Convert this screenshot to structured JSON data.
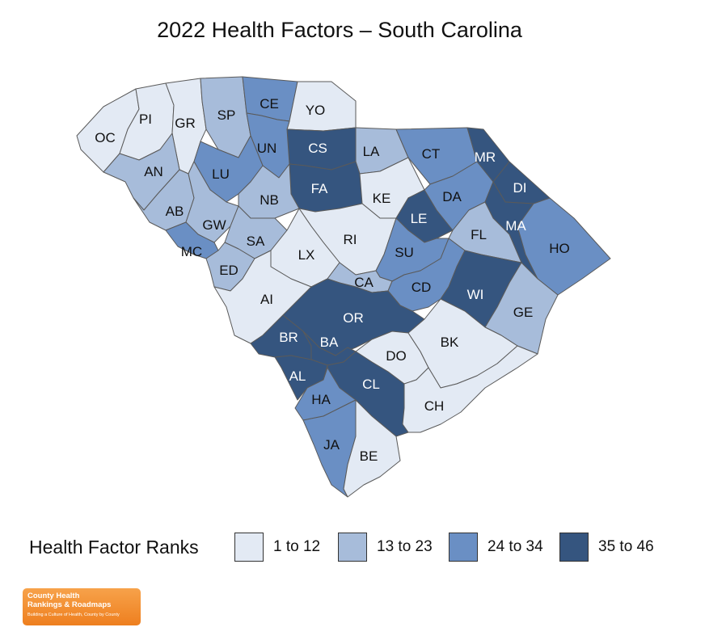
{
  "title": "2022 Health Factors – South Carolina",
  "legend": {
    "title": "Health Factor Ranks",
    "items": [
      {
        "label": "1 to 12",
        "color": "#e3eaf4"
      },
      {
        "label": "13 to 23",
        "color": "#a7bcda"
      },
      {
        "label": "24 to 34",
        "color": "#6a8fc4"
      },
      {
        "label": "35 to 46",
        "color": "#35557f"
      }
    ]
  },
  "counties": [
    {
      "code": "OC",
      "bin": 0
    },
    {
      "code": "PI",
      "bin": 0
    },
    {
      "code": "GR",
      "bin": 0
    },
    {
      "code": "SP",
      "bin": 1
    },
    {
      "code": "CE",
      "bin": 2
    },
    {
      "code": "YO",
      "bin": 0
    },
    {
      "code": "CS",
      "bin": 3
    },
    {
      "code": "UN",
      "bin": 2
    },
    {
      "code": "LA",
      "bin": 1
    },
    {
      "code": "CT",
      "bin": 2
    },
    {
      "code": "MR",
      "bin": 3
    },
    {
      "code": "DI",
      "bin": 3
    },
    {
      "code": "AN",
      "bin": 1
    },
    {
      "code": "LU",
      "bin": 2
    },
    {
      "code": "FA",
      "bin": 3
    },
    {
      "code": "KE",
      "bin": 0
    },
    {
      "code": "LE",
      "bin": 3
    },
    {
      "code": "DA",
      "bin": 2
    },
    {
      "code": "MA",
      "bin": 3
    },
    {
      "code": "HO",
      "bin": 2
    },
    {
      "code": "NB",
      "bin": 1
    },
    {
      "code": "AB",
      "bin": 1
    },
    {
      "code": "GW",
      "bin": 1
    },
    {
      "code": "SA",
      "bin": 1
    },
    {
      "code": "RI",
      "bin": 0
    },
    {
      "code": "FL",
      "bin": 1
    },
    {
      "code": "MC",
      "bin": 2
    },
    {
      "code": "LX",
      "bin": 0
    },
    {
      "code": "SU",
      "bin": 2
    },
    {
      "code": "ED",
      "bin": 1
    },
    {
      "code": "CA",
      "bin": 1
    },
    {
      "code": "CD",
      "bin": 2
    },
    {
      "code": "WI",
      "bin": 3
    },
    {
      "code": "AI",
      "bin": 0
    },
    {
      "code": "OR",
      "bin": 3
    },
    {
      "code": "GE",
      "bin": 1
    },
    {
      "code": "BR",
      "bin": 3
    },
    {
      "code": "BA",
      "bin": 3
    },
    {
      "code": "DO",
      "bin": 0
    },
    {
      "code": "BK",
      "bin": 0
    },
    {
      "code": "AL",
      "bin": 3
    },
    {
      "code": "CL",
      "bin": 3
    },
    {
      "code": "HA",
      "bin": 2
    },
    {
      "code": "CH",
      "bin": 0
    },
    {
      "code": "JA",
      "bin": 2
    },
    {
      "code": "BE",
      "bin": 0
    }
  ],
  "logo": {
    "line1": "County Health",
    "line2": "Rankings & Roadmaps",
    "tagline": "Building a Culture of Health, County by County"
  }
}
